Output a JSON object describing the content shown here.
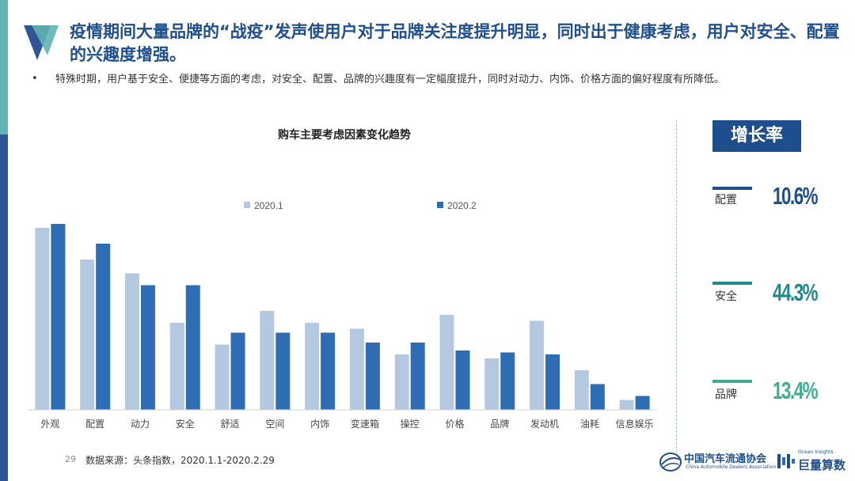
{
  "headline": "疫情期间大量品牌的“战疫”发声使用户对于品牌关注度提升明显，同时出于健康考虑，用户对安全、配置的兴趣度增强。",
  "bullet": "特殊时期，用户基于安全、便捷等方面的考虑，对安全、配置、品牌的兴趣度有一定幅度提升，同时对动力、内饰、价格方面的偏好程度有所降低。",
  "bullet_marker": "•",
  "growth": {
    "header": "增长率",
    "items": [
      {
        "label": "配置",
        "value": "10.6%",
        "color": "#1f4e8c"
      },
      {
        "label": "安全",
        "value": "44.3%",
        "color": "#1e8a8a"
      },
      {
        "label": "品牌",
        "value": "13.4%",
        "color": "#3fae8f"
      }
    ]
  },
  "footer": {
    "page": "29",
    "source": "数据来源：头条指数，2020.1.1-2020.2.29"
  },
  "logos": {
    "cada_cn": "中国汽车流通协会",
    "cada_en": "China Automobile Dealers Association",
    "ocean_cn": "巨量算数",
    "ocean_en": "Ocean Insights"
  },
  "colors": {
    "series1": "#b4c8e0",
    "series2": "#2e6db4",
    "title_blue": "#1f4e8c"
  },
  "chart_data": {
    "type": "bar",
    "title": "购车主要考虑因素变化趋势",
    "categories": [
      "外观",
      "配置",
      "动力",
      "安全",
      "舒适",
      "空间",
      "内饰",
      "变速箱",
      "操控",
      "价格",
      "品牌",
      "发动机",
      "油耗",
      "信息娱乐"
    ],
    "series": [
      {
        "name": "2020.1",
        "values": [
          92,
          76,
          69,
          44,
          33,
          50,
          44,
          41,
          28,
          48,
          26,
          45,
          20,
          5
        ]
      },
      {
        "name": "2020.2",
        "values": [
          94,
          84,
          63,
          63,
          39,
          39,
          39,
          34,
          34,
          30,
          29,
          28,
          13,
          7
        ]
      }
    ],
    "ylim": [
      0,
      100
    ],
    "grid": false,
    "legend_position": "top-center"
  }
}
